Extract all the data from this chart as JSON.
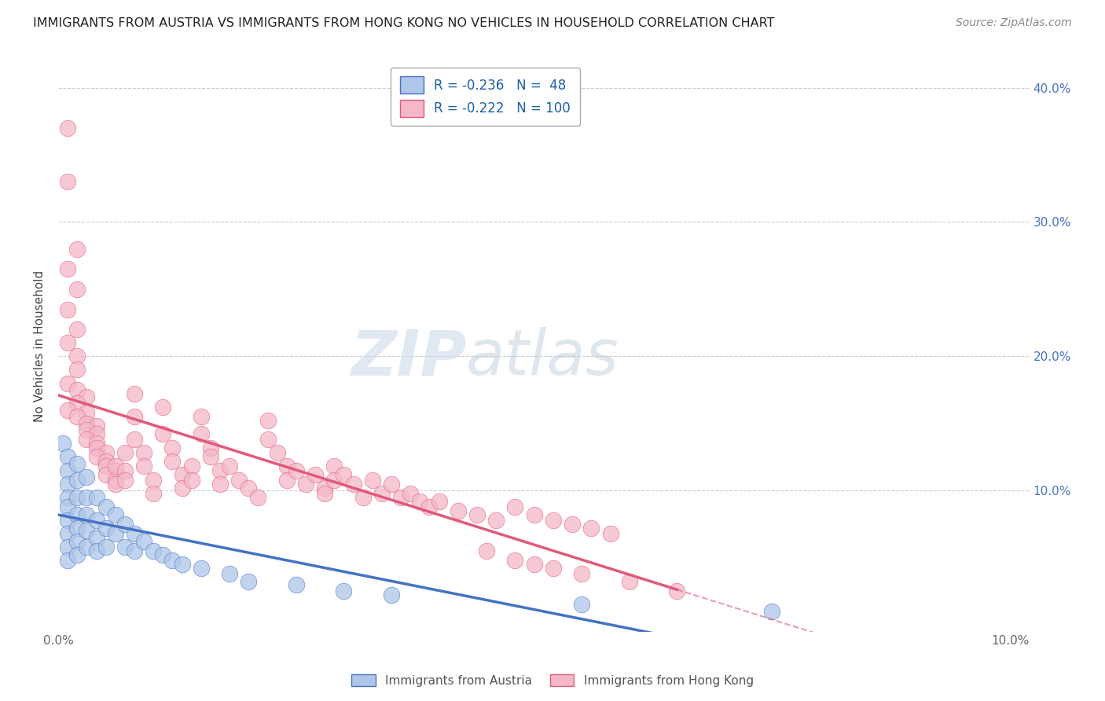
{
  "title": "IMMIGRANTS FROM AUSTRIA VS IMMIGRANTS FROM HONG KONG NO VEHICLES IN HOUSEHOLD CORRELATION CHART",
  "source": "Source: ZipAtlas.com",
  "ylabel": "No Vehicles in Household",
  "legend_austria": "R = -0.236   N =  48",
  "legend_hk": "R = -0.222   N = 100",
  "austria_color": "#aec6e8",
  "hk_color": "#f4b8c8",
  "austria_line_color": "#4472c4",
  "hk_line_color": "#e05a7a",
  "watermark_zip": "ZIP",
  "watermark_atlas": "atlas",
  "austria_scatter": [
    [
      0.0005,
      0.135
    ],
    [
      0.001,
      0.125
    ],
    [
      0.001,
      0.115
    ],
    [
      0.001,
      0.105
    ],
    [
      0.001,
      0.095
    ],
    [
      0.001,
      0.088
    ],
    [
      0.001,
      0.078
    ],
    [
      0.001,
      0.068
    ],
    [
      0.001,
      0.058
    ],
    [
      0.001,
      0.048
    ],
    [
      0.002,
      0.12
    ],
    [
      0.002,
      0.108
    ],
    [
      0.002,
      0.095
    ],
    [
      0.002,
      0.082
    ],
    [
      0.002,
      0.072
    ],
    [
      0.002,
      0.062
    ],
    [
      0.002,
      0.052
    ],
    [
      0.003,
      0.11
    ],
    [
      0.003,
      0.095
    ],
    [
      0.003,
      0.082
    ],
    [
      0.003,
      0.07
    ],
    [
      0.003,
      0.058
    ],
    [
      0.004,
      0.095
    ],
    [
      0.004,
      0.078
    ],
    [
      0.004,
      0.065
    ],
    [
      0.004,
      0.055
    ],
    [
      0.005,
      0.088
    ],
    [
      0.005,
      0.072
    ],
    [
      0.005,
      0.058
    ],
    [
      0.006,
      0.082
    ],
    [
      0.006,
      0.068
    ],
    [
      0.007,
      0.075
    ],
    [
      0.007,
      0.058
    ],
    [
      0.008,
      0.068
    ],
    [
      0.008,
      0.055
    ],
    [
      0.009,
      0.062
    ],
    [
      0.01,
      0.055
    ],
    [
      0.011,
      0.052
    ],
    [
      0.012,
      0.048
    ],
    [
      0.013,
      0.045
    ],
    [
      0.015,
      0.042
    ],
    [
      0.018,
      0.038
    ],
    [
      0.02,
      0.032
    ],
    [
      0.025,
      0.03
    ],
    [
      0.03,
      0.025
    ],
    [
      0.035,
      0.022
    ],
    [
      0.055,
      0.015
    ],
    [
      0.075,
      0.01
    ]
  ],
  "hk_scatter": [
    [
      0.001,
      0.37
    ],
    [
      0.001,
      0.33
    ],
    [
      0.002,
      0.28
    ],
    [
      0.001,
      0.265
    ],
    [
      0.002,
      0.25
    ],
    [
      0.001,
      0.235
    ],
    [
      0.002,
      0.22
    ],
    [
      0.001,
      0.21
    ],
    [
      0.002,
      0.2
    ],
    [
      0.002,
      0.19
    ],
    [
      0.001,
      0.18
    ],
    [
      0.002,
      0.175
    ],
    [
      0.003,
      0.17
    ],
    [
      0.002,
      0.165
    ],
    [
      0.001,
      0.16
    ],
    [
      0.003,
      0.158
    ],
    [
      0.002,
      0.155
    ],
    [
      0.003,
      0.15
    ],
    [
      0.004,
      0.148
    ],
    [
      0.003,
      0.145
    ],
    [
      0.004,
      0.142
    ],
    [
      0.003,
      0.138
    ],
    [
      0.004,
      0.135
    ],
    [
      0.004,
      0.132
    ],
    [
      0.005,
      0.128
    ],
    [
      0.004,
      0.125
    ],
    [
      0.005,
      0.122
    ],
    [
      0.005,
      0.118
    ],
    [
      0.006,
      0.115
    ],
    [
      0.005,
      0.112
    ],
    [
      0.006,
      0.108
    ],
    [
      0.006,
      0.105
    ],
    [
      0.007,
      0.128
    ],
    [
      0.006,
      0.118
    ],
    [
      0.007,
      0.115
    ],
    [
      0.007,
      0.108
    ],
    [
      0.008,
      0.172
    ],
    [
      0.008,
      0.155
    ],
    [
      0.008,
      0.138
    ],
    [
      0.009,
      0.128
    ],
    [
      0.009,
      0.118
    ],
    [
      0.01,
      0.108
    ],
    [
      0.01,
      0.098
    ],
    [
      0.011,
      0.162
    ],
    [
      0.011,
      0.142
    ],
    [
      0.012,
      0.132
    ],
    [
      0.012,
      0.122
    ],
    [
      0.013,
      0.112
    ],
    [
      0.013,
      0.102
    ],
    [
      0.014,
      0.118
    ],
    [
      0.014,
      0.108
    ],
    [
      0.015,
      0.155
    ],
    [
      0.015,
      0.142
    ],
    [
      0.016,
      0.132
    ],
    [
      0.016,
      0.125
    ],
    [
      0.017,
      0.115
    ],
    [
      0.017,
      0.105
    ],
    [
      0.018,
      0.118
    ],
    [
      0.019,
      0.108
    ],
    [
      0.02,
      0.102
    ],
    [
      0.021,
      0.095
    ],
    [
      0.022,
      0.152
    ],
    [
      0.022,
      0.138
    ],
    [
      0.023,
      0.128
    ],
    [
      0.024,
      0.118
    ],
    [
      0.024,
      0.108
    ],
    [
      0.025,
      0.115
    ],
    [
      0.026,
      0.105
    ],
    [
      0.027,
      0.112
    ],
    [
      0.028,
      0.102
    ],
    [
      0.028,
      0.098
    ],
    [
      0.029,
      0.118
    ],
    [
      0.029,
      0.108
    ],
    [
      0.03,
      0.112
    ],
    [
      0.031,
      0.105
    ],
    [
      0.032,
      0.095
    ],
    [
      0.033,
      0.108
    ],
    [
      0.034,
      0.098
    ],
    [
      0.035,
      0.105
    ],
    [
      0.036,
      0.095
    ],
    [
      0.037,
      0.098
    ],
    [
      0.038,
      0.092
    ],
    [
      0.039,
      0.088
    ],
    [
      0.04,
      0.092
    ],
    [
      0.042,
      0.085
    ],
    [
      0.044,
      0.082
    ],
    [
      0.046,
      0.078
    ],
    [
      0.048,
      0.088
    ],
    [
      0.05,
      0.082
    ],
    [
      0.052,
      0.078
    ],
    [
      0.054,
      0.075
    ],
    [
      0.056,
      0.072
    ],
    [
      0.058,
      0.068
    ],
    [
      0.045,
      0.055
    ],
    [
      0.048,
      0.048
    ],
    [
      0.05,
      0.045
    ],
    [
      0.052,
      0.042
    ],
    [
      0.055,
      0.038
    ],
    [
      0.06,
      0.032
    ],
    [
      0.065,
      0.025
    ]
  ],
  "xlim": [
    0.0,
    0.102
  ],
  "ylim": [
    -0.005,
    0.42
  ],
  "x_ticks": [
    0.0,
    0.02,
    0.04,
    0.06,
    0.08,
    0.1
  ],
  "y_ticks": [
    0.0,
    0.1,
    0.2,
    0.3,
    0.4
  ],
  "hk_line_solid_end": 0.065,
  "austria_line_x": [
    0.0,
    0.1
  ]
}
